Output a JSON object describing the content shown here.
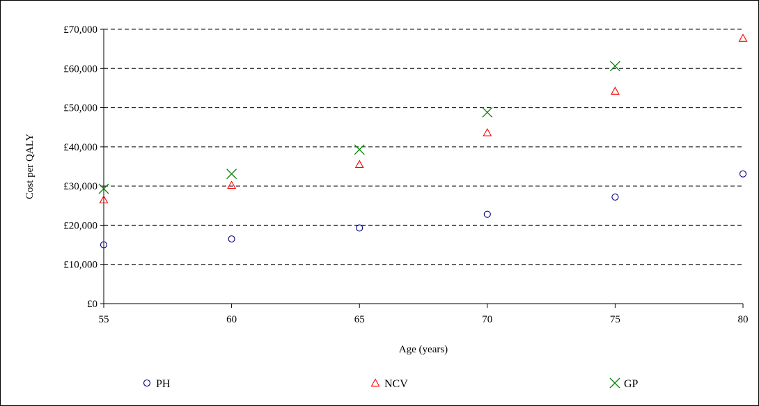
{
  "chart_data": {
    "type": "scatter",
    "xlabel": "Age (years)",
    "ylabel": "Cost per QALY",
    "xlim": [
      55,
      80
    ],
    "ylim": [
      0,
      70000
    ],
    "x_ticks": [
      55,
      60,
      65,
      70,
      75,
      80
    ],
    "y_ticks": [
      0,
      10000,
      20000,
      30000,
      40000,
      50000,
      60000,
      70000
    ],
    "y_tick_labels": [
      "£0",
      "£10,000",
      "£20,000",
      "£30,000",
      "£40,000",
      "£50,000",
      "£60,000",
      "£70,000"
    ],
    "grid": "horizontal dashed",
    "legend_position": "bottom",
    "series": [
      {
        "name": "PH",
        "marker": "circle",
        "color": "#000080",
        "x": [
          55,
          60,
          65,
          70,
          75,
          80
        ],
        "values": [
          15000,
          16500,
          19300,
          22800,
          27200,
          33100
        ]
      },
      {
        "name": "NCV",
        "marker": "triangle",
        "color": "#ff0000",
        "x": [
          55,
          60,
          65,
          70,
          75,
          80
        ],
        "values": [
          26500,
          30200,
          35500,
          43600,
          54200,
          67700
        ]
      },
      {
        "name": "GP",
        "marker": "cross",
        "color": "#008000",
        "x": [
          55,
          60,
          65,
          70,
          75
        ],
        "values": [
          29300,
          33100,
          39300,
          48800,
          60600
        ]
      }
    ]
  }
}
